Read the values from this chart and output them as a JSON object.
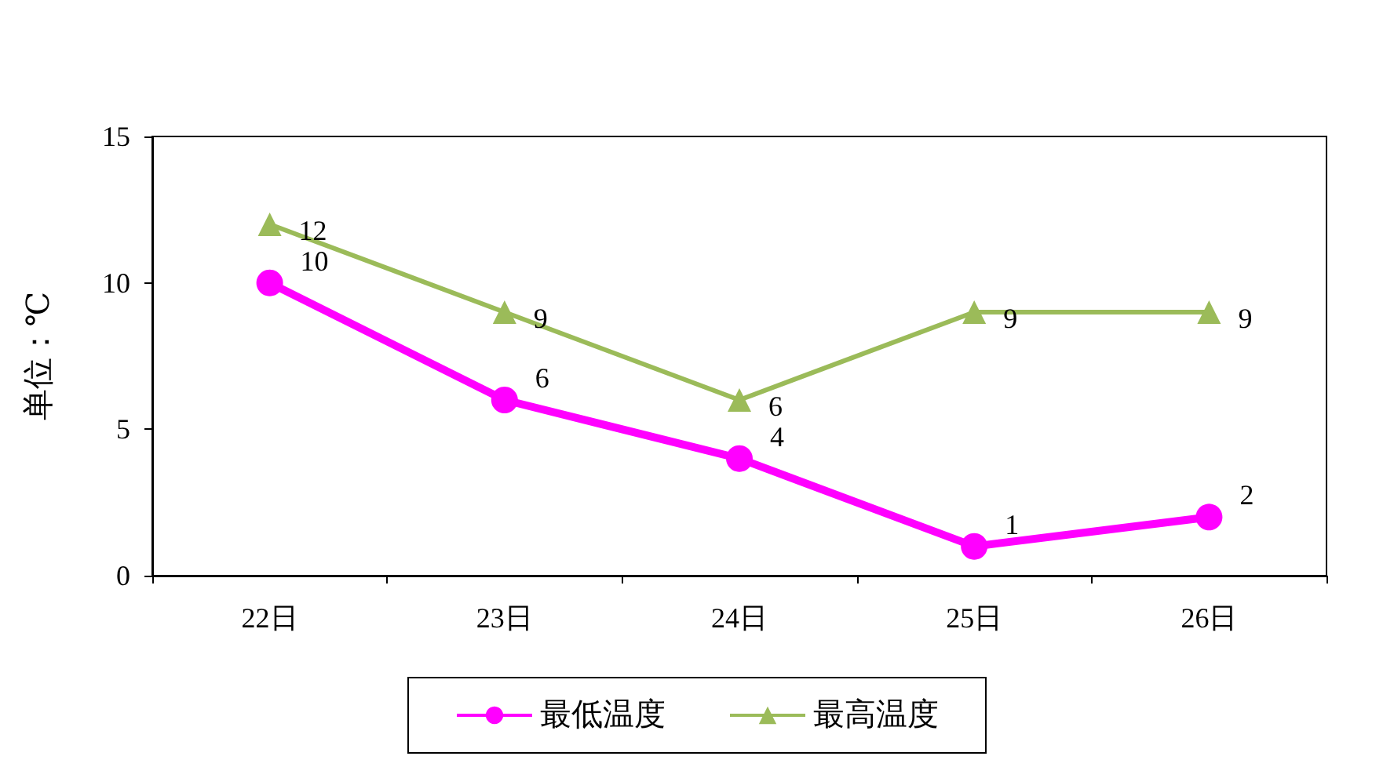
{
  "chart_data": {
    "type": "line",
    "ylabel": "单位：℃",
    "categories": [
      "22日",
      "23日",
      "24日",
      "25日",
      "26日"
    ],
    "series": [
      {
        "name": "最低温度",
        "color": "#ff00ff",
        "values": [
          10,
          6,
          4,
          1,
          2
        ],
        "marker": "circle"
      },
      {
        "name": "最高温度",
        "color": "#9bbb59",
        "values": [
          12,
          9,
          6,
          9,
          9
        ],
        "marker": "triangle"
      }
    ],
    "ylim": [
      0,
      15
    ],
    "yticks": [
      0,
      5,
      10,
      15
    ],
    "grid": false,
    "legend": "bottom",
    "data_labels": true
  }
}
